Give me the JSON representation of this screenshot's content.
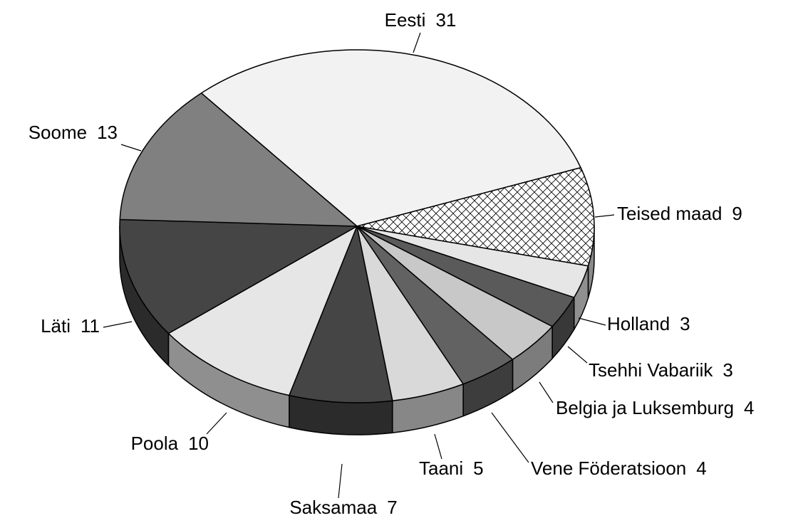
{
  "chart_data": {
    "type": "pie3d",
    "categories": [
      "Eesti",
      "Teised maad",
      "Holland",
      "Tsehhi Vabariik",
      "Belgia ja Luksemburg",
      "Vene Föderatsioon",
      "Taani",
      "Saksamaa",
      "Poola",
      "Läti",
      "Soome"
    ],
    "values": [
      31,
      9,
      3,
      3,
      4,
      4,
      5,
      7,
      10,
      11,
      13
    ],
    "colors": [
      "#f2f2f2",
      "crosshatch",
      "#e6e6e6",
      "#5a5a5a",
      "#c8c8c8",
      "#626262",
      "#d9d9d9",
      "#454545",
      "#e6e6e6",
      "#454545",
      "#808080"
    ]
  }
}
